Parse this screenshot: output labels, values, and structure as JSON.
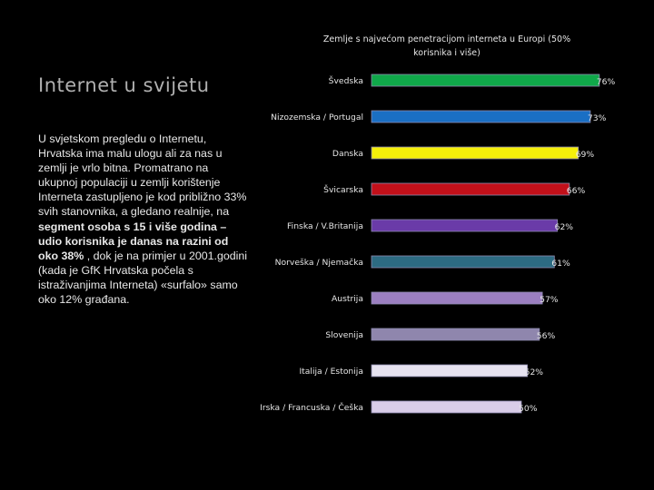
{
  "slide": {
    "title": "Internet u svijetu",
    "body": {
      "part1": "U  svjetskom pregledu o Internetu, Hrvatska ima malu ulogu ali za nas u zemlji je vrlo bitna. Promatrano na ukupnoj populaciji u zemlji korištenje Interneta zastupljeno je kod približno 33% svih stanovnika, a gledano realnije, na ",
      "bold": "segment osoba s 15 i više godina – udio korisnika je danas na razini od oko 38%",
      "part2": " , dok je na primjer u 2001.godini (kada je GfK Hrvatska počela s istraživanjima Interneta) «surfalo» samo oko 12% građana."
    }
  },
  "chart_data": {
    "type": "bar",
    "orientation": "horizontal",
    "title_lines": [
      "Zemlje s najvećom penetracijom interneta u Europi  (50%",
      "korisnika i više)"
    ],
    "categories": [
      "Švedska",
      "Nizozemska / Portugal",
      "Danska",
      "Švicarska",
      "Finska / V.Britanija",
      "Norveška / Njemačka",
      "Austrija",
      "Slovenija",
      "Italija / Estonija",
      "Irska / Francuska / Češka"
    ],
    "values": [
      76,
      73,
      69,
      66,
      62,
      61,
      57,
      56,
      52,
      50
    ],
    "value_labels": [
      "76%",
      "73%",
      "69%",
      "66%",
      "62%",
      "61%",
      "57%",
      "56%",
      "52%",
      "50%"
    ],
    "colors": [
      "#10a84a",
      "#1a6fc4",
      "#f5ef0a",
      "#c2101a",
      "#6a3ba8",
      "#2d6b82",
      "#9b7fc0",
      "#8f86ad",
      "#e7e3f0",
      "#d9cde8"
    ],
    "xlim": [
      0,
      76
    ],
    "grid": false,
    "legend": "none"
  }
}
